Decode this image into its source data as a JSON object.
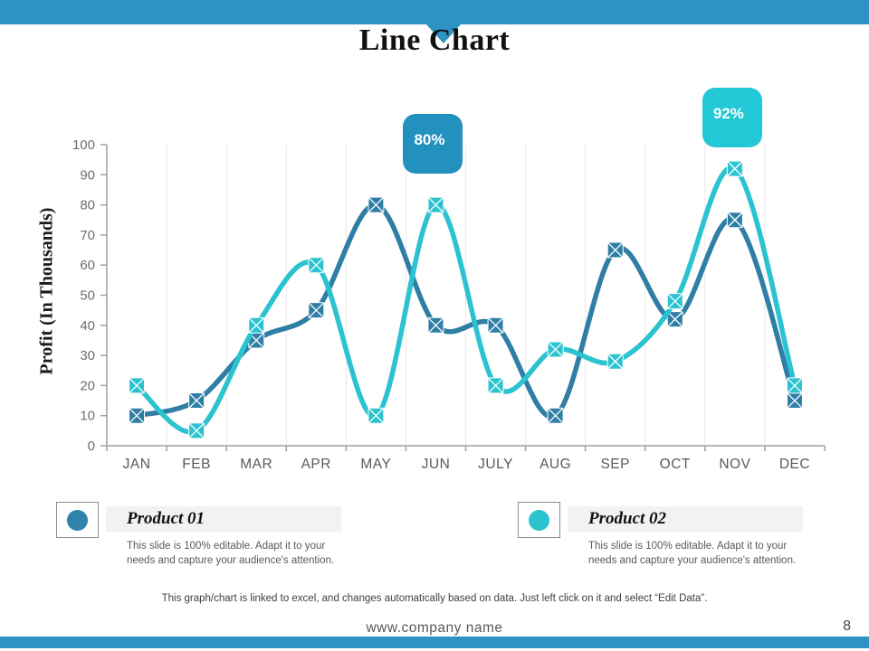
{
  "slide": {
    "title": "Line Chart",
    "page_number": "8",
    "footer_note": "This graph/chart is linked to excel, and changes automatically based on data. Just left click on it and select “Edit Data”.",
    "website": "www.company name",
    "accent_color": "#2e92c2"
  },
  "chart_data": {
    "type": "line",
    "title": "",
    "xlabel": "",
    "ylabel": "Profit (In Thousands)",
    "ylim": [
      0,
      100
    ],
    "ytick_step": 10,
    "grid": "vertical",
    "smooth": true,
    "marker": "square-x",
    "legend_position": "bottom",
    "categories": [
      "JAN",
      "FEB",
      "MAR",
      "APR",
      "MAY",
      "JUN",
      "JULY",
      "AUG",
      "SEP",
      "OCT",
      "NOV",
      "DEC"
    ],
    "series": [
      {
        "name": "Product 01",
        "color": "#2f7ea6",
        "values": [
          10,
          15,
          35,
          45,
          80,
          40,
          40,
          10,
          65,
          42,
          75,
          15
        ]
      },
      {
        "name": "Product 02",
        "color": "#2bc3cf",
        "values": [
          20,
          5,
          40,
          60,
          10,
          80,
          20,
          32,
          28,
          48,
          92,
          20
        ]
      }
    ],
    "annotations": [
      {
        "label": "80%",
        "color": "#2391bd",
        "x_index": 5
      },
      {
        "label": "92%",
        "color": "#22c8d5",
        "x_index": 10
      }
    ]
  },
  "legend": {
    "items": [
      {
        "name": "Product 01",
        "color": "#2e82ab",
        "description": "This slide is 100% editable. Adapt it to your needs and capture your audience's attention."
      },
      {
        "name": "Product 02",
        "color": "#2bc3cf",
        "description": "This slide is 100% editable. Adapt it to your needs and capture your audience's attention."
      }
    ]
  }
}
